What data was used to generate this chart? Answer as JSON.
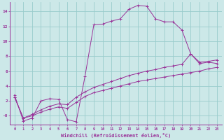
{
  "xlabel": "Windchill (Refroidissement éolien,°C)",
  "background_color": "#cce8e8",
  "grid_color": "#99cccc",
  "line_color": "#993399",
  "xlim": [
    -0.5,
    23.5
  ],
  "ylim": [
    -1.2,
    15.2
  ],
  "yticks": [
    0,
    2,
    4,
    6,
    8,
    10,
    12,
    14
  ],
  "ytick_labels": [
    "-0",
    "2",
    "4",
    "6",
    "8",
    "10",
    "12",
    "14"
  ],
  "xticks": [
    0,
    1,
    2,
    3,
    4,
    5,
    6,
    7,
    8,
    9,
    10,
    11,
    12,
    13,
    14,
    15,
    16,
    17,
    18,
    19,
    20,
    21,
    22,
    23
  ],
  "line1_x": [
    0,
    1,
    2,
    3,
    4,
    5,
    6,
    7,
    8,
    9,
    10,
    11,
    12,
    13,
    14,
    15,
    16,
    17,
    18,
    19,
    20,
    21,
    22,
    23
  ],
  "line1_y": [
    2.8,
    -0.7,
    -0.3,
    2.0,
    2.3,
    2.2,
    -0.5,
    -0.8,
    5.3,
    12.2,
    12.3,
    12.7,
    13.0,
    14.3,
    14.8,
    14.7,
    13.0,
    12.6,
    12.6,
    11.5,
    8.3,
    7.0,
    7.2,
    7.0
  ],
  "line2_x": [
    0,
    1,
    2,
    3,
    4,
    5,
    6,
    7,
    8,
    9,
    10,
    11,
    12,
    13,
    14,
    15,
    16,
    17,
    18,
    19,
    20,
    21,
    22,
    23
  ],
  "line2_y": [
    2.5,
    -0.3,
    0.2,
    0.8,
    1.3,
    1.6,
    1.5,
    2.5,
    3.2,
    3.8,
    4.2,
    4.6,
    5.0,
    5.4,
    5.7,
    6.0,
    6.2,
    6.5,
    6.7,
    6.9,
    8.3,
    7.2,
    7.3,
    7.5
  ],
  "line3_x": [
    0,
    1,
    2,
    3,
    4,
    5,
    6,
    7,
    8,
    9,
    10,
    11,
    12,
    13,
    14,
    15,
    16,
    17,
    18,
    19,
    20,
    21,
    22,
    23
  ],
  "line3_y": [
    2.5,
    -0.3,
    0.0,
    0.5,
    0.9,
    1.2,
    1.0,
    1.8,
    2.6,
    3.1,
    3.4,
    3.7,
    4.0,
    4.3,
    4.6,
    4.8,
    5.0,
    5.2,
    5.4,
    5.6,
    5.8,
    6.0,
    6.3,
    6.5
  ]
}
